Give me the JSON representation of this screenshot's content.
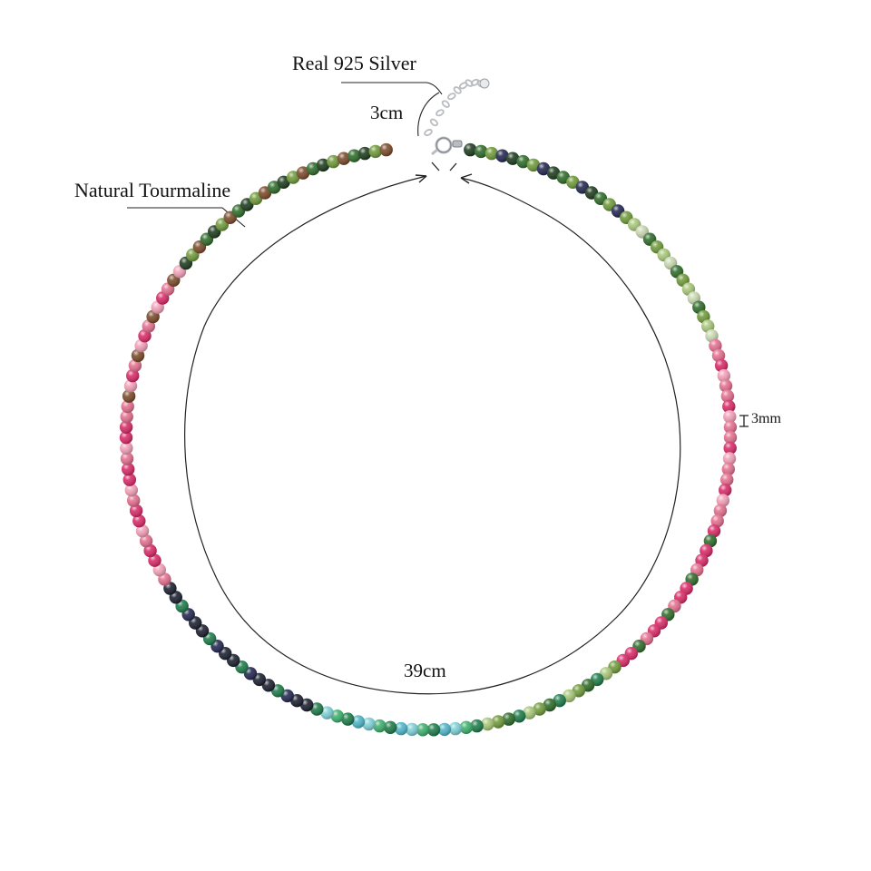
{
  "annotations": {
    "material": "Real  925 Silver",
    "extender_length": "3cm",
    "stone": "Natural Tourmaline",
    "bead_size": "3mm",
    "necklace_length": "39cm"
  },
  "colors": {
    "background": "#ffffff",
    "line": "#222222",
    "silver": "#b9bcc0",
    "bead_palette": [
      "#2f6b2a",
      "#1d3b1e",
      "#6f9a3a",
      "#a8c77a",
      "#c9d8b0",
      "#e46f8f",
      "#d92a67",
      "#f2a0b8",
      "#1a1f2e",
      "#23274f",
      "#7a4a2a",
      "#1e7b4a",
      "#3db06c",
      "#7fd1d6",
      "#4fb6c9"
    ]
  }
}
